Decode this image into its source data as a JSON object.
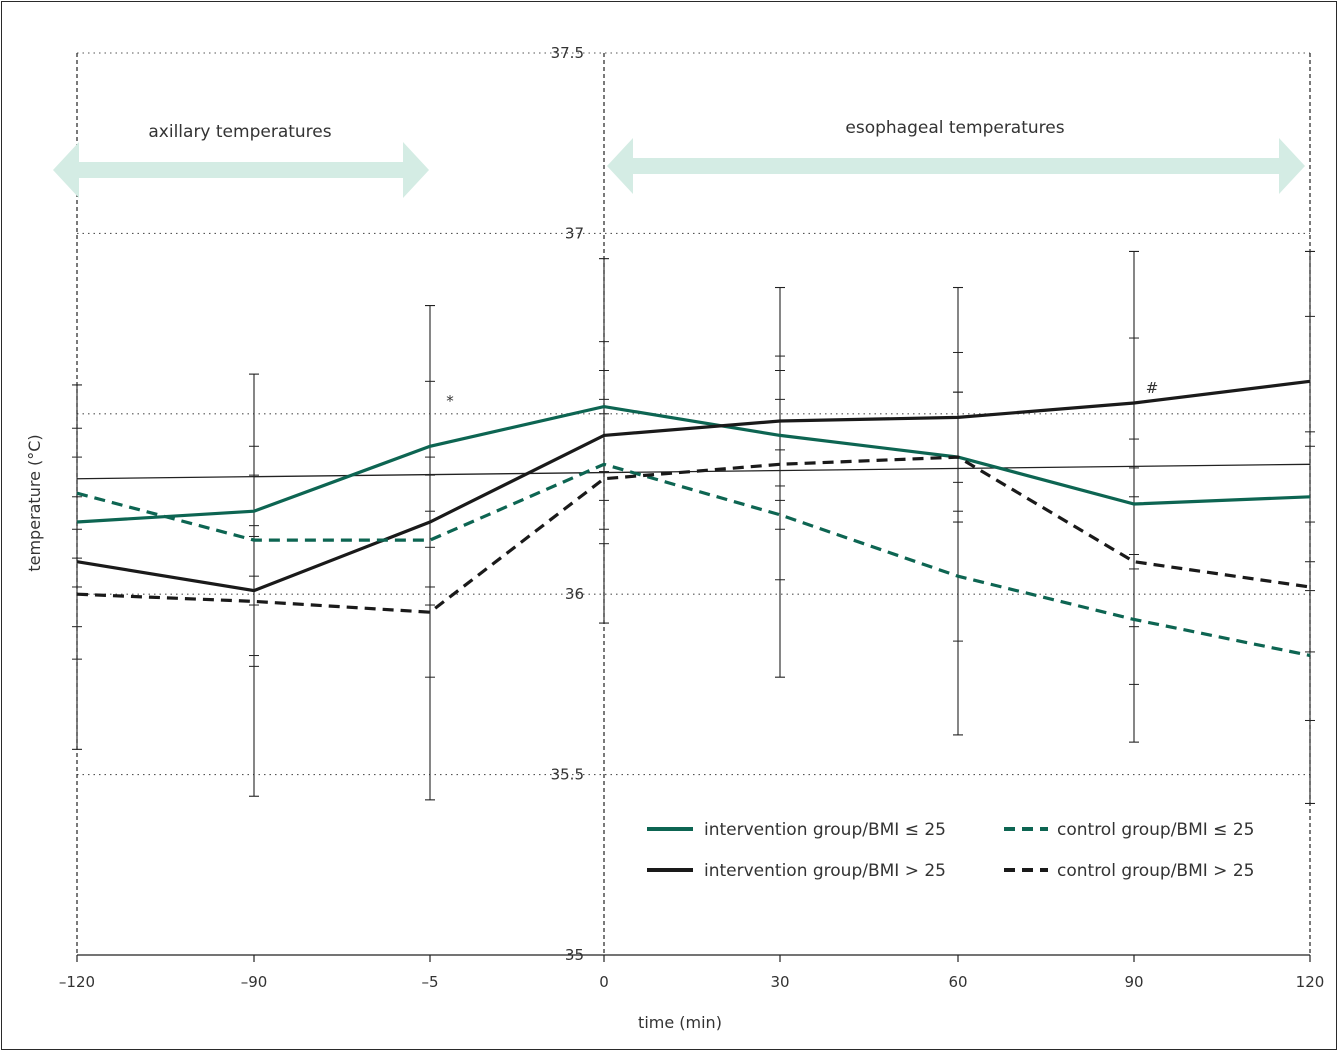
{
  "chart_data": {
    "type": "line",
    "xlabel": "time (min)",
    "ylabel": "temperature (°C)",
    "ylim": [
      35,
      37.5
    ],
    "x": [
      "–120",
      "–90",
      "–5",
      "0",
      "30",
      "60",
      "90",
      "120"
    ],
    "y_ticks": [
      "35",
      "35.5",
      "36",
      "37",
      "37.5"
    ],
    "grid": "horizontal dotted",
    "legend_position": "bottom-right",
    "colors": {
      "green": "#0d6552",
      "black": "#1a1a1a",
      "arrow": "#d4ece4"
    },
    "series": [
      {
        "name": "intervention group/BMI ≤ 25",
        "color": "green",
        "dash": false,
        "values": [
          36.2,
          36.23,
          36.41,
          36.52,
          36.44,
          36.38,
          36.25,
          36.27
        ]
      },
      {
        "name": "intervention group/BMI > 25",
        "color": "black",
        "dash": false,
        "values": [
          36.09,
          36.01,
          36.2,
          36.44,
          36.48,
          36.49,
          36.53,
          36.59
        ]
      },
      {
        "name": "control group/BMI ≤ 25",
        "color": "green",
        "dash": true,
        "values": [
          36.28,
          36.15,
          36.15,
          36.36,
          36.22,
          36.05,
          35.93,
          35.83
        ]
      },
      {
        "name": "control group/BMI > 25",
        "color": "black",
        "dash": true,
        "values": [
          36.0,
          35.98,
          35.95,
          36.32,
          36.36,
          36.38,
          36.09,
          36.02
        ]
      }
    ],
    "trend_line": {
      "values_at_ends": [
        36.32,
        36.36
      ]
    },
    "error_bars": [
      {
        "x_index": 0,
        "low": 35.57,
        "high": 36.58
      },
      {
        "x_index": 1,
        "low": 35.44,
        "high": 36.61
      },
      {
        "x_index": 2,
        "low": 35.43,
        "high": 36.8
      },
      {
        "x_index": 3,
        "low": 35.92,
        "high": 36.93
      },
      {
        "x_index": 4,
        "low": 35.77,
        "high": 36.85
      },
      {
        "x_index": 5,
        "low": 35.61,
        "high": 36.85
      },
      {
        "x_index": 6,
        "low": 35.59,
        "high": 36.95
      },
      {
        "x_index": 7,
        "low": 35.42,
        "high": 36.95
      }
    ],
    "annotations": {
      "axillary_label": "axillary temperatures",
      "esophageal_label": "esophageal temperatures",
      "star_marker": "*",
      "hash_marker": "#"
    }
  }
}
